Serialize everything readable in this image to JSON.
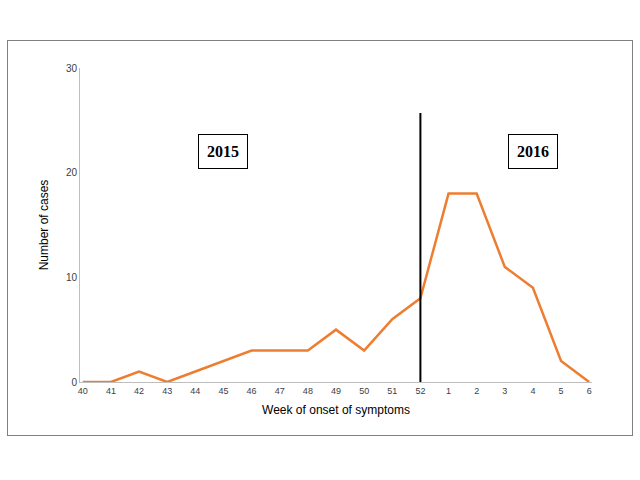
{
  "chart_data": {
    "type": "line",
    "x_label": "Week of onset of symptoms",
    "y_label": "Number of cases",
    "categories": [
      "40",
      "41",
      "42",
      "43",
      "44",
      "45",
      "46",
      "47",
      "48",
      "49",
      "50",
      "51",
      "52",
      "1",
      "2",
      "3",
      "4",
      "5",
      "6"
    ],
    "series": [
      {
        "color": "#ed7d31",
        "values": [
          0,
          0,
          1,
          0,
          1,
          2,
          3,
          3,
          3,
          5,
          3,
          6,
          8,
          18,
          18,
          11,
          9,
          2,
          0
        ]
      }
    ],
    "ylim": [
      0,
      30
    ],
    "yticks": [
      0,
      10,
      20,
      30
    ],
    "grid": false,
    "annotations": [
      {
        "text": "2015",
        "x": "45",
        "y": 22
      },
      {
        "text": "2016",
        "x": "4",
        "y": 22
      }
    ],
    "vlines": [
      "52"
    ]
  }
}
